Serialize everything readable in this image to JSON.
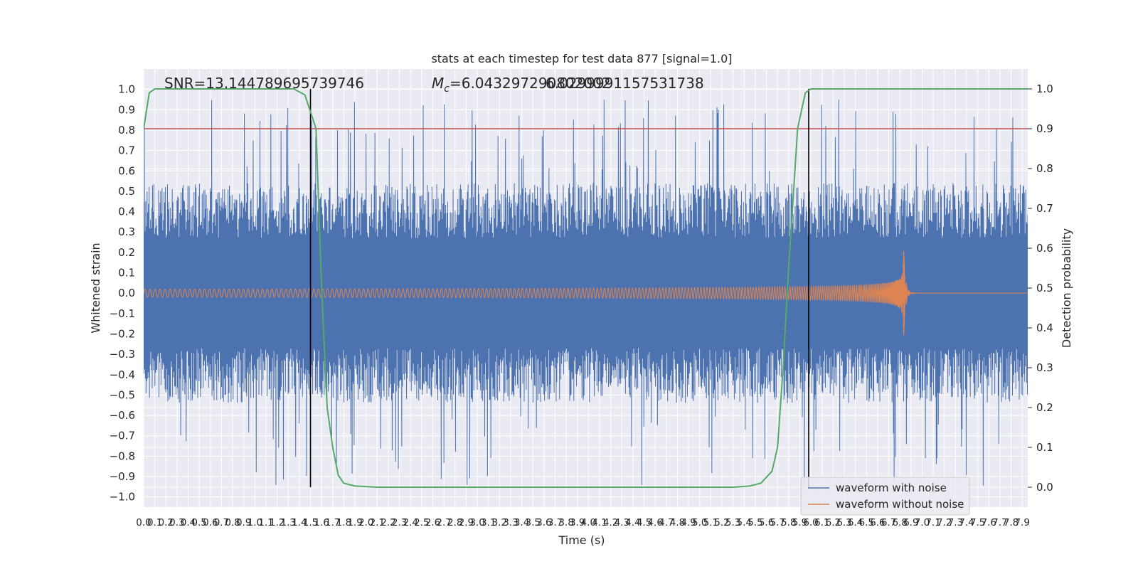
{
  "chart_data": {
    "type": "line",
    "title": "stats at each timestep for test data 877 [signal=1.0]",
    "xlabel": "Time (s)",
    "ylabel": "Whitened strain",
    "y2label": "Detection probability",
    "xlim": [
      0.0,
      7.95
    ],
    "ylim": [
      -1.05,
      1.1
    ],
    "y2lim": [
      -0.05,
      1.05
    ],
    "xtick_step": 0.1,
    "xtick_max": 7.9,
    "yticks": [
      -1.0,
      -0.9,
      -0.8,
      -0.7,
      -0.6,
      -0.5,
      -0.4,
      -0.3,
      -0.2,
      -0.1,
      0.0,
      0.1,
      0.2,
      0.3,
      0.4,
      0.5,
      0.6,
      0.7,
      0.8,
      0.9,
      1.0
    ],
    "yticklabels": [
      "−1.0",
      "−0.9",
      "−0.8",
      "−0.7",
      "−0.6",
      "−0.5",
      "−0.4",
      "−0.3",
      "−0.2",
      "−0.1",
      "0.0",
      "0.1",
      "0.2",
      "0.3",
      "0.4",
      "0.5",
      "0.6",
      "0.7",
      "0.8",
      "0.9",
      "1.0"
    ],
    "y2ticks": [
      0.0,
      0.1,
      0.2,
      0.3,
      0.4,
      0.5,
      0.6,
      0.7,
      0.8,
      0.9,
      1.0
    ],
    "y2ticklabels": [
      "0.0",
      "0.1",
      "0.2",
      "0.3",
      "0.4",
      "0.5",
      "0.6",
      "0.7",
      "0.8",
      "0.9",
      "1.0"
    ],
    "grid": true,
    "legend_position": "lower-right",
    "annotations": {
      "snr": "SNR=13.144789695739746",
      "mc_symbol": "M",
      "mc_subscript": "c",
      "mc_value_a": "=6.043297290802002",
      "mc_value_b": "6.0299991157531738"
    },
    "series": [
      {
        "name": "waveform with noise",
        "color": "#4c72b0",
        "kind": "noise",
        "typical_amplitude": 0.45,
        "extreme_max": 0.97,
        "extreme_min": -0.95
      },
      {
        "name": "waveform without noise",
        "color": "#dd8452",
        "kind": "chirp",
        "amplitude_start": 0.02,
        "amplitude_peak": 0.36,
        "merger_time": 6.83
      },
      {
        "name": "detection probability",
        "color": "#55a868",
        "axis": "right",
        "points": [
          [
            0.0,
            0.9
          ],
          [
            0.05,
            0.99
          ],
          [
            0.1,
            1.0
          ],
          [
            1.35,
            1.0
          ],
          [
            1.45,
            0.985
          ],
          [
            1.55,
            0.9
          ],
          [
            1.6,
            0.5
          ],
          [
            1.65,
            0.2
          ],
          [
            1.7,
            0.1
          ],
          [
            1.75,
            0.03
          ],
          [
            1.8,
            0.01
          ],
          [
            1.9,
            0.003
          ],
          [
            2.1,
            0.0
          ],
          [
            5.3,
            0.0
          ],
          [
            5.45,
            0.003
          ],
          [
            5.55,
            0.01
          ],
          [
            5.65,
            0.04
          ],
          [
            5.7,
            0.1
          ],
          [
            5.75,
            0.3
          ],
          [
            5.8,
            0.55
          ],
          [
            5.88,
            0.9
          ],
          [
            5.95,
            0.99
          ],
          [
            6.0,
            1.0
          ],
          [
            7.95,
            1.0
          ]
        ]
      }
    ],
    "threshold": {
      "value": 0.9,
      "axis": "right",
      "color": "#c44e52"
    },
    "vlines": [
      1.5,
      5.98
    ]
  }
}
